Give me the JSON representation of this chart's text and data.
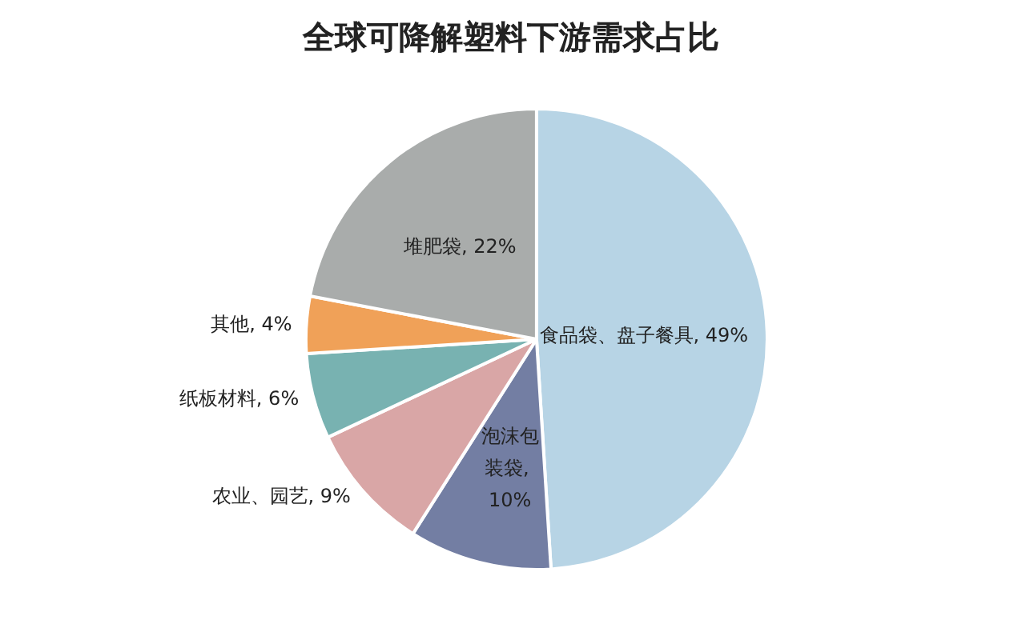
{
  "chart_data": {
    "type": "pie",
    "title": "全球可降解塑料下游需求占比",
    "categories": [
      "食品袋、盘子餐具",
      "泡沫包装袋",
      "农业、园艺",
      "纸板材料",
      "其他",
      "堆肥袋"
    ],
    "values": [
      49,
      10,
      9,
      6,
      4,
      22
    ],
    "colors": [
      "#b7d4e5",
      "#737ea3",
      "#d9a6a6",
      "#78b2b1",
      "#f0a158",
      "#a9acab"
    ],
    "value_labels": [
      ", 49%",
      ", 10%",
      ", 9%",
      ", 6%",
      ", 4%",
      ", 22%"
    ],
    "legend": false
  }
}
